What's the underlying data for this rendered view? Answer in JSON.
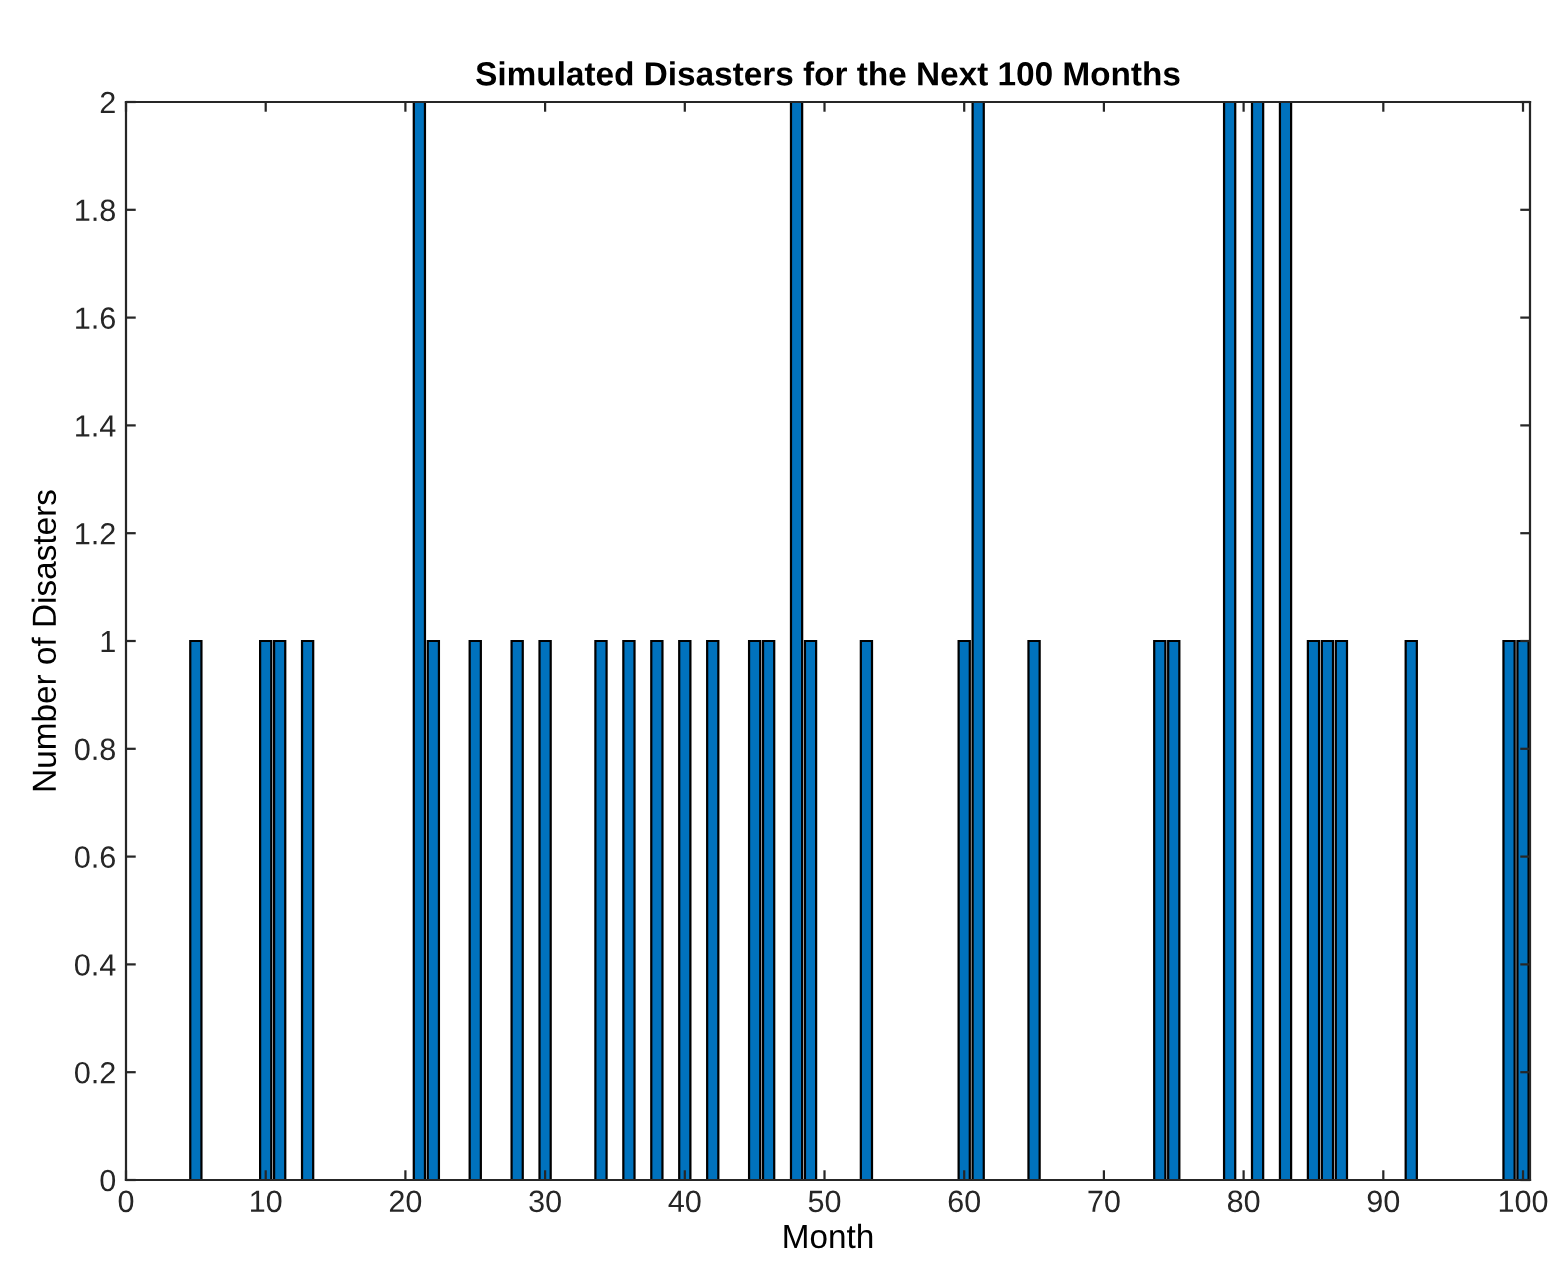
{
  "chart_data": {
    "type": "bar",
    "title": "Simulated Disasters for the Next 100 Months",
    "xlabel": "Month",
    "ylabel": "Number of Disasters",
    "x": [
      5,
      10,
      11,
      13,
      21,
      22,
      25,
      28,
      30,
      34,
      36,
      38,
      40,
      42,
      45,
      46,
      48,
      49,
      53,
      60,
      61,
      65,
      74,
      75,
      79,
      81,
      83,
      85,
      86,
      87,
      92,
      99,
      100
    ],
    "values": [
      1,
      1,
      1,
      1,
      2,
      1,
      1,
      1,
      1,
      1,
      1,
      1,
      1,
      1,
      1,
      1,
      2,
      1,
      1,
      1,
      2,
      1,
      1,
      1,
      2,
      2,
      2,
      1,
      1,
      1,
      1,
      1,
      1
    ],
    "color": "#0072bd",
    "xlim": [
      0,
      100.5
    ],
    "xticks": [
      0,
      10,
      20,
      30,
      40,
      50,
      60,
      70,
      80,
      90,
      100
    ],
    "ylim": [
      0,
      2
    ],
    "yticks": [
      0,
      0.2,
      0.4,
      0.6,
      0.8,
      1,
      1.2,
      1.4,
      1.6,
      1.8,
      2
    ],
    "grid": false,
    "legend": false
  }
}
